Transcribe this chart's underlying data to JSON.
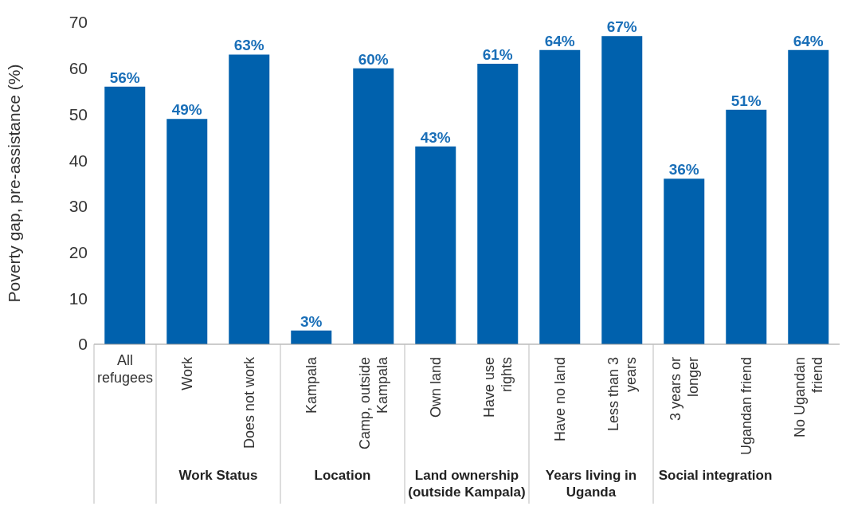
{
  "chart_data": {
    "type": "bar",
    "ylabel": "Poverty gap, pre-assistance (%)",
    "categories": [
      "All refugees",
      "Work",
      "Does not work",
      "Kampala",
      "Camp, outside Kampala",
      "Own land",
      "Have use rights",
      "Have no land",
      "Less than 3 years",
      "3 years or longer",
      "Ugandan friend",
      "No Ugandan friend"
    ],
    "values": [
      56,
      49,
      63,
      3,
      60,
      43,
      61,
      64,
      67,
      36,
      51,
      64
    ],
    "value_labels": [
      "56%",
      "49%",
      "63%",
      "3%",
      "60%",
      "43%",
      "61%",
      "64%",
      "67%",
      "36%",
      "51%",
      "64%"
    ],
    "color": "#0061ad",
    "ylim": [
      0,
      70
    ],
    "yticks": [
      0,
      10,
      20,
      30,
      40,
      50,
      60,
      70
    ],
    "grid": false,
    "legend": false,
    "annotations": [
      "Work Status",
      "Location",
      "Land ownership (outside Kampala)",
      "Years living in Uganda",
      "Social integration"
    ]
  }
}
